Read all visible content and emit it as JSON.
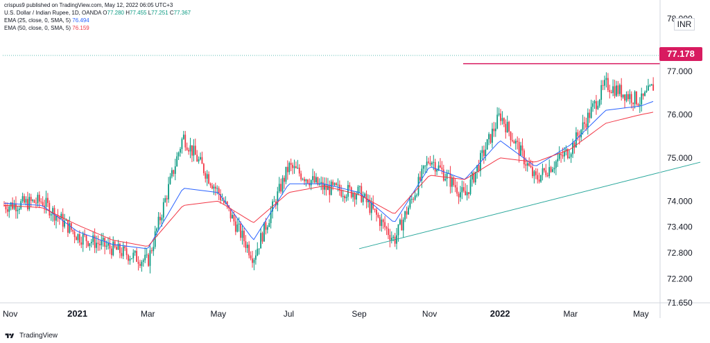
{
  "header": {
    "publisher_line": "crispus9 published on TradingView.com, May 12, 2022 06:05 UTC+3",
    "symbol": "U.S. Dollar / Indian Rupee, 1D, OANDA",
    "ohlc": {
      "o_label": "O",
      "o": "77.280",
      "h_label": "H",
      "h": "77.455",
      "l_label": "L",
      "l": "77.251",
      "c_label": "C",
      "c": "77.367"
    },
    "ema25": {
      "label": "EMA (25, close, 0, SMA, 5)",
      "value": "76.494"
    },
    "ema50": {
      "label": "EMA (50, close, 0, SMA, 5)",
      "value": "76.159"
    }
  },
  "currency_label": "INR",
  "last_price_tag": "77.178",
  "footer": {
    "logo_text": "TradingView"
  },
  "chart_data": {
    "type": "candlestick",
    "ylim": [
      71.65,
      78.2
    ],
    "price_ticks": [
      "77.000",
      "76.000",
      "75.000",
      "74.000",
      "73.400",
      "72.800",
      "72.200",
      "71.650"
    ],
    "price_ticks_values": [
      77.0,
      76.0,
      75.0,
      74.0,
      73.4,
      72.8,
      72.2,
      71.65
    ],
    "top_tick_label": "78.000",
    "x_ticks": [
      {
        "label": "Nov",
        "bold": false
      },
      {
        "label": "2021",
        "bold": true
      },
      {
        "label": "Mar",
        "bold": false
      },
      {
        "label": "May",
        "bold": false
      },
      {
        "label": "Jul",
        "bold": false
      },
      {
        "label": "Sep",
        "bold": false
      },
      {
        "label": "Nov",
        "bold": false
      },
      {
        "label": "2022",
        "bold": true
      },
      {
        "label": "Mar",
        "bold": false
      },
      {
        "label": "May",
        "bold": false
      }
    ],
    "x_ticks_month_index": [
      0,
      2,
      4,
      6,
      8,
      10,
      12,
      14,
      16,
      18
    ],
    "monthly_close": [
      73.9,
      74.0,
      73.2,
      72.9,
      72.6,
      75.5,
      74.2,
      72.7,
      74.8,
      74.3,
      74.2,
      73.1,
      75.0,
      74.1,
      76.0,
      74.5,
      75.2,
      76.7,
      76.3,
      77.3
    ],
    "ema25_monthly": [
      73.95,
      73.9,
      73.3,
      73.0,
      72.9,
      74.3,
      74.2,
      73.1,
      74.4,
      74.4,
      74.2,
      73.5,
      74.8,
      74.5,
      75.4,
      74.8,
      75.3,
      76.1,
      76.2,
      76.5
    ],
    "ema50_monthly": [
      73.9,
      73.85,
      73.45,
      73.1,
      72.95,
      73.9,
      74.0,
      73.5,
      74.2,
      74.35,
      74.15,
      73.7,
      74.6,
      74.5,
      75.0,
      74.9,
      75.2,
      75.8,
      76.0,
      76.16
    ],
    "resistance_line": {
      "price": 77.178,
      "from_month": 15,
      "to_month": 20
    },
    "support_line": {
      "from": [
        10.0,
        72.9
      ],
      "to": [
        20.0,
        74.9
      ]
    },
    "candle_colors": {
      "up": "#089981",
      "down": "#f23645"
    }
  },
  "colors": {
    "ema25": "#2962ff",
    "ema50": "#f23645",
    "support": "#26a69a",
    "resistance": "#d81b60",
    "last_price_line": "#26a69a"
  }
}
